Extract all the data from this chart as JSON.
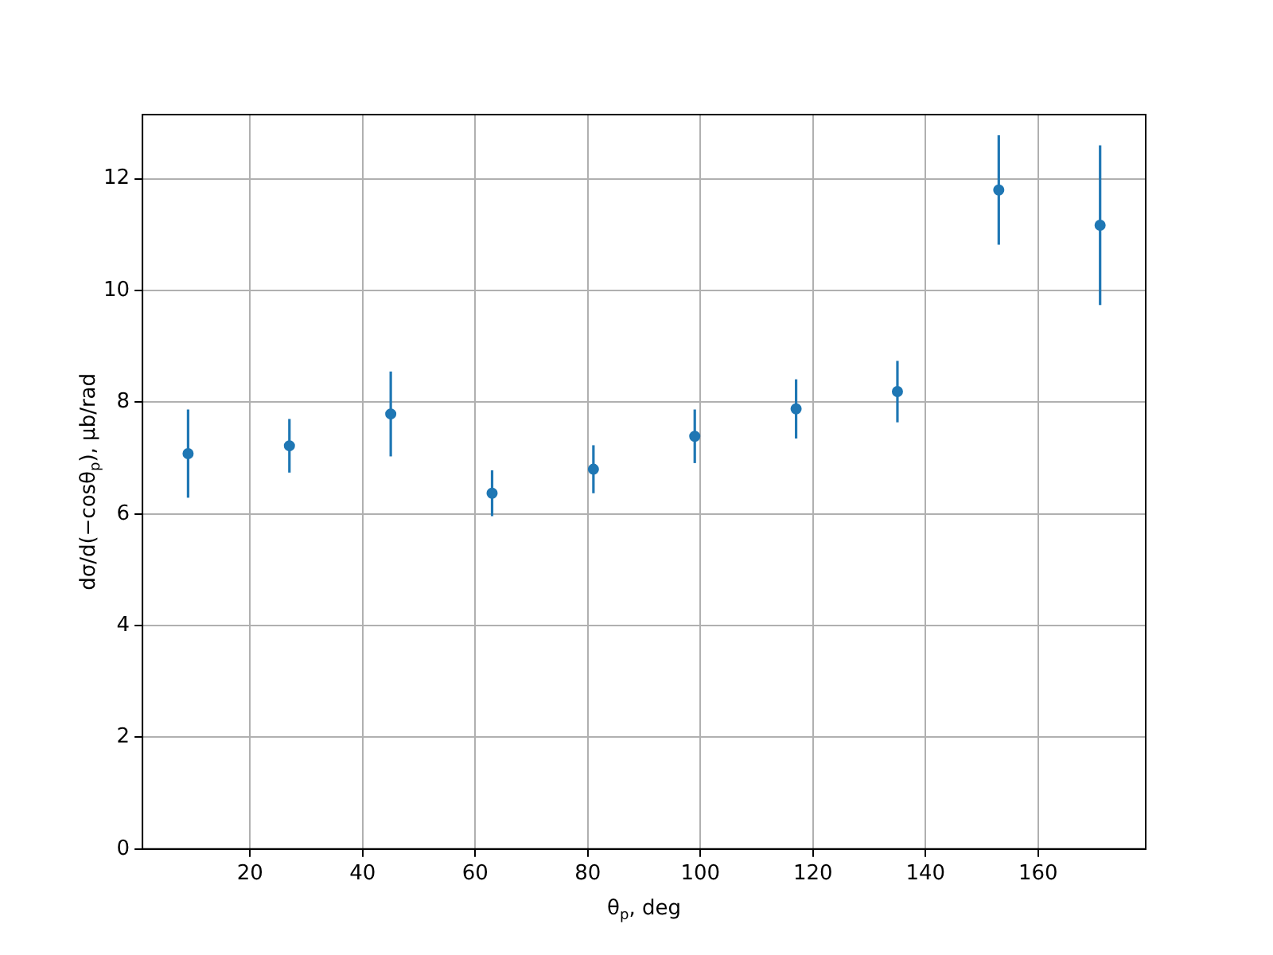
{
  "chart_data": {
    "type": "scatter",
    "xlabel": "θ$_{p}$, deg",
    "ylabel": "dσ/d(−cosθ$_{p}$), μb/rad",
    "x": [
      9,
      27,
      45,
      63,
      81,
      99,
      117,
      135,
      153,
      171
    ],
    "series": [
      {
        "color": "#1f77b4",
        "values": [
          7.08,
          7.22,
          7.79,
          6.37,
          6.8,
          7.39,
          7.88,
          8.19,
          11.8,
          11.17
        ],
        "errors": [
          0.79,
          0.48,
          0.76,
          0.41,
          0.43,
          0.48,
          0.53,
          0.55,
          0.98,
          1.43
        ]
      }
    ],
    "xlim": [
      0.9,
      179.1
    ],
    "xticks": [
      20,
      40,
      60,
      80,
      100,
      120,
      140,
      160
    ],
    "ylim": [
      0,
      13.15
    ],
    "yticks": [
      0,
      2,
      4,
      6,
      8,
      10,
      12
    ],
    "grid": true,
    "marker": "circle",
    "legend": false
  }
}
